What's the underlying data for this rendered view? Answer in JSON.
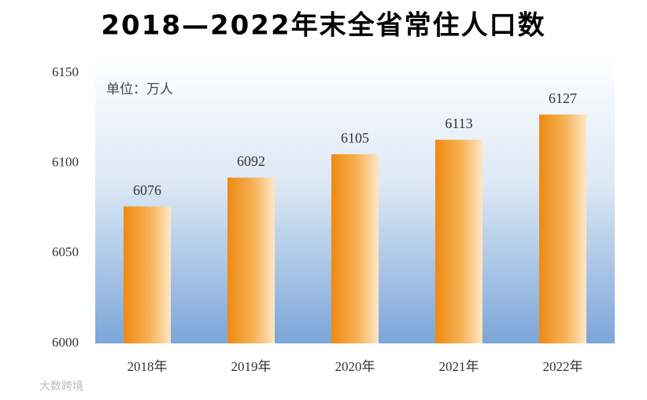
{
  "chart_data": {
    "type": "bar",
    "title": "2018—2022年末全省常住人口数",
    "unit": "单位：万人",
    "categories": [
      "2018年",
      "2019年",
      "2020年",
      "2021年",
      "2022年"
    ],
    "values": [
      6076,
      6092,
      6105,
      6113,
      6127
    ],
    "color": "#f0901e",
    "ylim": [
      6000,
      6150
    ],
    "yticks": [
      6000,
      6050,
      6100,
      6150
    ],
    "grid": false
  },
  "watermark": "大数跨境"
}
